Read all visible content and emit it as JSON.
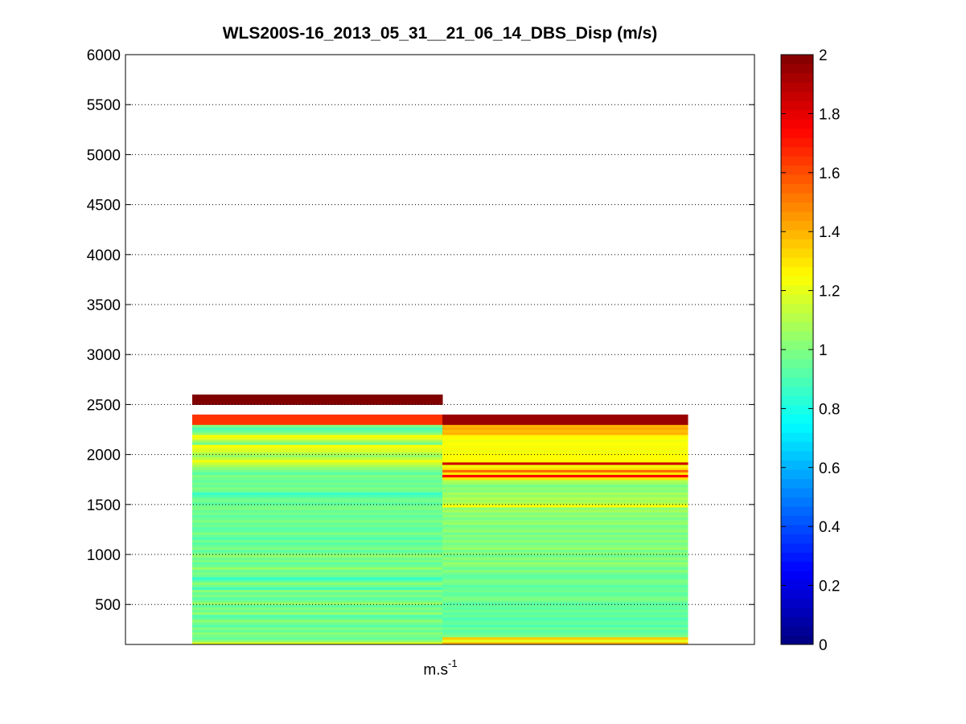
{
  "chart_data": {
    "type": "heatmap",
    "title": "WLS200S-16_2013_05_31__21_06_14_DBS_Disp (m/s)",
    "xlabel": "m.s",
    "xlabel_superscript": "-1",
    "ylabel": "",
    "ylim": [
      100,
      6000
    ],
    "yticks": [
      500,
      1000,
      1500,
      2000,
      2500,
      3000,
      3500,
      4000,
      4500,
      5000,
      5500,
      6000
    ],
    "grid": "horizontal dotted",
    "colormap": "jet",
    "clim": [
      0,
      2
    ],
    "colorbar_ticks": [
      0,
      0.2,
      0.4,
      0.6,
      0.8,
      1,
      1.2,
      1.4,
      1.6,
      1.8,
      2
    ],
    "colorbar_position": "right",
    "row_height": 25,
    "columns": [
      {
        "gaps": [
          [
            2400,
            2500
          ]
        ],
        "cells": [
          [
            100,
            1.2
          ],
          [
            125,
            1.02
          ],
          [
            150,
            0.95
          ],
          [
            175,
            0.98
          ],
          [
            200,
            1.02
          ],
          [
            225,
            0.95
          ],
          [
            250,
            1.0
          ],
          [
            275,
            0.92
          ],
          [
            300,
            0.97
          ],
          [
            325,
            1.03
          ],
          [
            350,
            0.95
          ],
          [
            375,
            0.9
          ],
          [
            400,
            1.04
          ],
          [
            425,
            0.96
          ],
          [
            450,
            1.0
          ],
          [
            475,
            0.93
          ],
          [
            500,
            1.06
          ],
          [
            525,
            0.97
          ],
          [
            550,
            0.92
          ],
          [
            575,
            1.0
          ],
          [
            600,
            0.95
          ],
          [
            625,
            1.02
          ],
          [
            650,
            0.88
          ],
          [
            675,
            0.97
          ],
          [
            700,
            1.03
          ],
          [
            725,
            0.93
          ],
          [
            750,
            0.85
          ],
          [
            775,
            0.96
          ],
          [
            800,
            1.0
          ],
          [
            825,
            0.95
          ],
          [
            850,
            1.05
          ],
          [
            875,
            0.97
          ],
          [
            900,
            0.93
          ],
          [
            925,
            1.0
          ],
          [
            950,
            0.96
          ],
          [
            975,
            1.04
          ],
          [
            1000,
            0.98
          ],
          [
            1025,
            0.93
          ],
          [
            1050,
            1.0
          ],
          [
            1075,
            0.96
          ],
          [
            1100,
            0.92
          ],
          [
            1125,
            0.98
          ],
          [
            1150,
            0.9
          ],
          [
            1175,
            0.95
          ],
          [
            1200,
            1.0
          ],
          [
            1225,
            0.94
          ],
          [
            1250,
            0.92
          ],
          [
            1275,
            0.97
          ],
          [
            1300,
            0.95
          ],
          [
            1325,
            1.0
          ],
          [
            1350,
            0.96
          ],
          [
            1375,
            0.93
          ],
          [
            1400,
            0.98
          ],
          [
            1425,
            0.95
          ],
          [
            1450,
            1.0
          ],
          [
            1475,
            0.97
          ],
          [
            1500,
            0.93
          ],
          [
            1525,
            0.98
          ],
          [
            1550,
            0.96
          ],
          [
            1575,
            0.9
          ],
          [
            1600,
            0.86
          ],
          [
            1625,
            0.97
          ],
          [
            1650,
            1.0
          ],
          [
            1675,
            0.95
          ],
          [
            1700,
            0.98
          ],
          [
            1725,
            0.94
          ],
          [
            1750,
            0.97
          ],
          [
            1775,
            1.0
          ],
          [
            1800,
            0.92
          ],
          [
            1825,
            0.98
          ],
          [
            1850,
            1.02
          ],
          [
            1875,
            1.08
          ],
          [
            1900,
            1.15
          ],
          [
            1925,
            1.22
          ],
          [
            1950,
            1.12
          ],
          [
            1975,
            1.05
          ],
          [
            2000,
            1.1
          ],
          [
            2025,
            1.17
          ],
          [
            2050,
            1.2
          ],
          [
            2075,
            1.25
          ],
          [
            2100,
            0.97
          ],
          [
            2125,
            1.08
          ],
          [
            2150,
            1.2
          ],
          [
            2175,
            1.25
          ],
          [
            2200,
            1.02
          ],
          [
            2225,
            0.95
          ],
          [
            2250,
            0.9
          ],
          [
            2275,
            1.0
          ],
          [
            2300,
            1.65
          ],
          [
            2325,
            1.65
          ],
          [
            2350,
            1.65
          ],
          [
            2375,
            1.65
          ],
          [
            2500,
            2.0
          ],
          [
            2525,
            2.0
          ],
          [
            2550,
            2.0
          ],
          [
            2575,
            2.0
          ]
        ]
      },
      {
        "gaps": [],
        "cells": [
          [
            100,
            1.4
          ],
          [
            125,
            1.2
          ],
          [
            150,
            1.35
          ],
          [
            175,
            1.0
          ],
          [
            200,
            0.95
          ],
          [
            225,
            0.92
          ],
          [
            250,
            0.97
          ],
          [
            275,
            0.9
          ],
          [
            300,
            0.95
          ],
          [
            325,
            0.93
          ],
          [
            350,
            0.9
          ],
          [
            375,
            0.96
          ],
          [
            400,
            0.92
          ],
          [
            425,
            0.97
          ],
          [
            450,
            0.93
          ],
          [
            475,
            0.95
          ],
          [
            500,
            0.92
          ],
          [
            525,
            0.98
          ],
          [
            550,
            1.0
          ],
          [
            575,
            0.95
          ],
          [
            600,
            0.93
          ],
          [
            625,
            0.97
          ],
          [
            650,
            0.95
          ],
          [
            675,
            0.92
          ],
          [
            700,
            0.98
          ],
          [
            725,
            1.0
          ],
          [
            750,
            0.95
          ],
          [
            775,
            0.93
          ],
          [
            800,
            0.97
          ],
          [
            825,
            1.02
          ],
          [
            850,
            0.95
          ],
          [
            875,
            1.0
          ],
          [
            900,
            1.05
          ],
          [
            925,
            0.98
          ],
          [
            950,
            1.03
          ],
          [
            975,
            0.96
          ],
          [
            1000,
            1.02
          ],
          [
            1025,
            0.97
          ],
          [
            1050,
            1.05
          ],
          [
            1075,
            1.0
          ],
          [
            1100,
            0.98
          ],
          [
            1125,
            1.03
          ],
          [
            1150,
            0.97
          ],
          [
            1175,
            1.02
          ],
          [
            1200,
            0.96
          ],
          [
            1225,
            1.04
          ],
          [
            1250,
            1.0
          ],
          [
            1275,
            0.97
          ],
          [
            1300,
            1.05
          ],
          [
            1325,
            1.02
          ],
          [
            1350,
            0.98
          ],
          [
            1375,
            1.04
          ],
          [
            1400,
            1.0
          ],
          [
            1425,
            1.08
          ],
          [
            1450,
            1.02
          ],
          [
            1475,
            1.25
          ],
          [
            1500,
            1.12
          ],
          [
            1525,
            1.06
          ],
          [
            1550,
            1.1
          ],
          [
            1575,
            1.04
          ],
          [
            1600,
            1.08
          ],
          [
            1625,
            1.0
          ],
          [
            1650,
            1.03
          ],
          [
            1675,
            0.98
          ],
          [
            1700,
            1.05
          ],
          [
            1725,
            1.1
          ],
          [
            1750,
            1.3
          ],
          [
            1775,
            1.75
          ],
          [
            1800,
            1.3
          ],
          [
            1825,
            1.55
          ],
          [
            1850,
            1.3
          ],
          [
            1875,
            1.22
          ],
          [
            1900,
            1.85
          ],
          [
            1925,
            1.25
          ],
          [
            1950,
            1.25
          ],
          [
            1975,
            1.25
          ],
          [
            2000,
            1.24
          ],
          [
            2025,
            1.22
          ],
          [
            2050,
            1.26
          ],
          [
            2075,
            1.23
          ],
          [
            2100,
            1.25
          ],
          [
            2125,
            1.22
          ],
          [
            2150,
            1.25
          ],
          [
            2175,
            1.27
          ],
          [
            2200,
            1.4
          ],
          [
            2225,
            1.38
          ],
          [
            2250,
            1.42
          ],
          [
            2275,
            1.4
          ],
          [
            2300,
            1.95
          ],
          [
            2325,
            1.95
          ],
          [
            2350,
            1.95
          ],
          [
            2375,
            1.95
          ]
        ]
      }
    ]
  }
}
